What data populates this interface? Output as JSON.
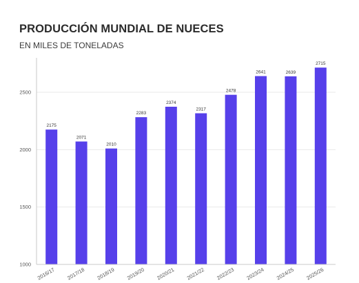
{
  "chart_data": {
    "type": "bar",
    "title": "PRODUCCIÓN MUNDIAL DE NUECES",
    "subtitle": "EN MILES DE TONELADAS",
    "xlabel": "",
    "ylabel": "",
    "categories": [
      "2016/17",
      "2017/18",
      "2018/19",
      "2019/20",
      "2020/21",
      "2021/22",
      "2022/23",
      "2023/24",
      "2024/25",
      "2025/26"
    ],
    "values": [
      2175,
      2071,
      2010,
      2283,
      2374,
      2317,
      2478,
      2641,
      2639,
      2715
    ],
    "ylim": [
      1000,
      2800
    ],
    "yticks": [
      1000,
      1500,
      2000,
      2500
    ],
    "grid": true,
    "legend": "none",
    "colors": {
      "bar": "#5640ea",
      "grid": "#e8e8e8",
      "axis": "#c8c8c8"
    }
  }
}
